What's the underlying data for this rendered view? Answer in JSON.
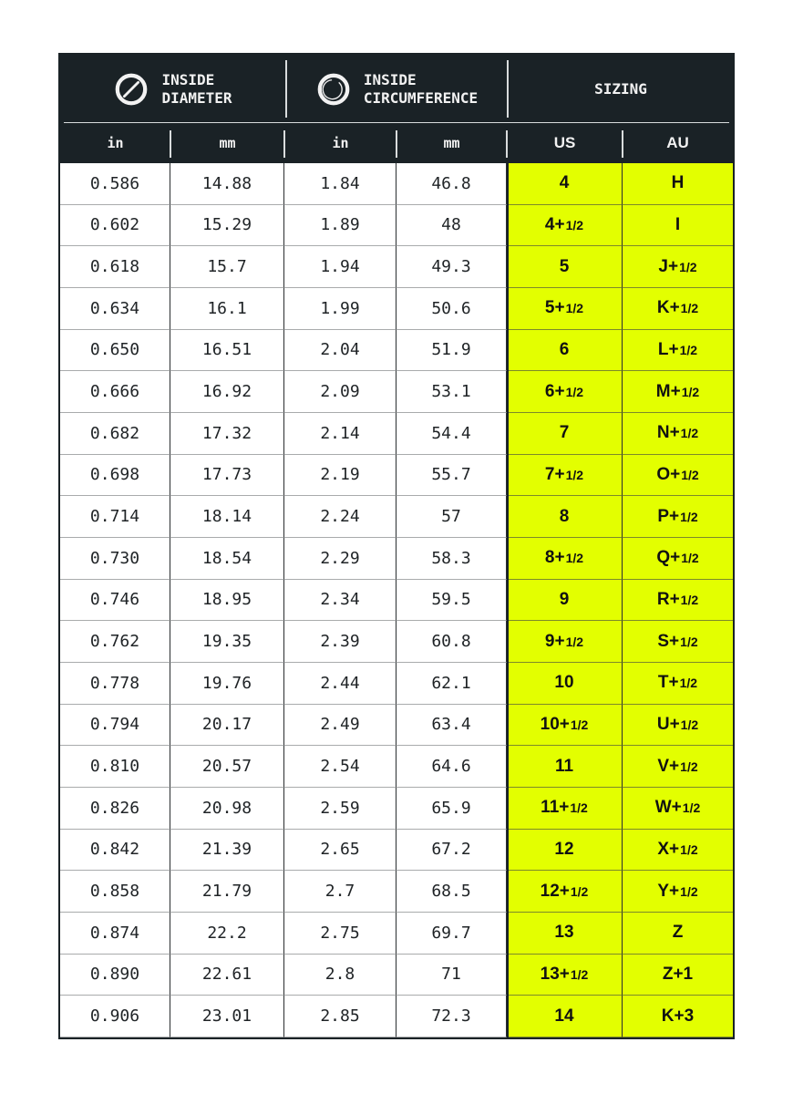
{
  "header": {
    "groups": [
      {
        "line1": "INSIDE",
        "line2": "DIAMETER",
        "icon": "diameter-icon"
      },
      {
        "line1": "INSIDE",
        "line2": "CIRCUMFERENCE",
        "icon": "circumference-icon"
      },
      {
        "line1": "SIZING"
      }
    ],
    "columns": [
      "in",
      "mm",
      "in",
      "mm",
      "US",
      "AU"
    ]
  },
  "colors": {
    "header_bg": "#1a2226",
    "sizing_bg": "#e3ff00"
  },
  "rows": [
    {
      "d_in": "0.586",
      "d_mm": "14.88",
      "c_in": "1.84",
      "c_mm": "46.8",
      "us": "4",
      "us_frac": "",
      "au": "H",
      "au_frac": ""
    },
    {
      "d_in": "0.602",
      "d_mm": "15.29",
      "c_in": "1.89",
      "c_mm": "48",
      "us": "4+",
      "us_frac": "1/2",
      "au": "I",
      "au_frac": ""
    },
    {
      "d_in": "0.618",
      "d_mm": "15.7",
      "c_in": "1.94",
      "c_mm": "49.3",
      "us": "5",
      "us_frac": "",
      "au": "J+",
      "au_frac": "1/2"
    },
    {
      "d_in": "0.634",
      "d_mm": "16.1",
      "c_in": "1.99",
      "c_mm": "50.6",
      "us": "5+",
      "us_frac": "1/2",
      "au": "K+",
      "au_frac": "1/2"
    },
    {
      "d_in": "0.650",
      "d_mm": "16.51",
      "c_in": "2.04",
      "c_mm": "51.9",
      "us": "6",
      "us_frac": "",
      "au": "L+",
      "au_frac": "1/2"
    },
    {
      "d_in": "0.666",
      "d_mm": "16.92",
      "c_in": "2.09",
      "c_mm": "53.1",
      "us": "6+",
      "us_frac": "1/2",
      "au": "M+",
      "au_frac": "1/2"
    },
    {
      "d_in": "0.682",
      "d_mm": "17.32",
      "c_in": "2.14",
      "c_mm": "54.4",
      "us": "7",
      "us_frac": "",
      "au": "N+",
      "au_frac": "1/2"
    },
    {
      "d_in": "0.698",
      "d_mm": "17.73",
      "c_in": "2.19",
      "c_mm": "55.7",
      "us": "7+",
      "us_frac": "1/2",
      "au": "O+",
      "au_frac": "1/2"
    },
    {
      "d_in": "0.714",
      "d_mm": "18.14",
      "c_in": "2.24",
      "c_mm": "57",
      "us": "8",
      "us_frac": "",
      "au": "P+",
      "au_frac": "1/2"
    },
    {
      "d_in": "0.730",
      "d_mm": "18.54",
      "c_in": "2.29",
      "c_mm": "58.3",
      "us": "8+",
      "us_frac": "1/2",
      "au": "Q+",
      "au_frac": "1/2"
    },
    {
      "d_in": "0.746",
      "d_mm": "18.95",
      "c_in": "2.34",
      "c_mm": "59.5",
      "us": "9",
      "us_frac": "",
      "au": "R+",
      "au_frac": "1/2"
    },
    {
      "d_in": "0.762",
      "d_mm": "19.35",
      "c_in": "2.39",
      "c_mm": "60.8",
      "us": "9+",
      "us_frac": "1/2",
      "au": "S+",
      "au_frac": "1/2"
    },
    {
      "d_in": "0.778",
      "d_mm": "19.76",
      "c_in": "2.44",
      "c_mm": "62.1",
      "us": "10",
      "us_frac": "",
      "au": "T+",
      "au_frac": "1/2"
    },
    {
      "d_in": "0.794",
      "d_mm": "20.17",
      "c_in": "2.49",
      "c_mm": "63.4",
      "us": "10+",
      "us_frac": "1/2",
      "au": "U+",
      "au_frac": "1/2"
    },
    {
      "d_in": "0.810",
      "d_mm": "20.57",
      "c_in": "2.54",
      "c_mm": "64.6",
      "us": "11",
      "us_frac": "",
      "au": "V+",
      "au_frac": "1/2"
    },
    {
      "d_in": "0.826",
      "d_mm": "20.98",
      "c_in": "2.59",
      "c_mm": "65.9",
      "us": "11+",
      "us_frac": "1/2",
      "au": "W+",
      "au_frac": "1/2"
    },
    {
      "d_in": "0.842",
      "d_mm": "21.39",
      "c_in": "2.65",
      "c_mm": "67.2",
      "us": "12",
      "us_frac": "",
      "au": "X+",
      "au_frac": "1/2"
    },
    {
      "d_in": "0.858",
      "d_mm": "21.79",
      "c_in": "2.7",
      "c_mm": "68.5",
      "us": "12+",
      "us_frac": "1/2",
      "au": "Y+",
      "au_frac": "1/2"
    },
    {
      "d_in": "0.874",
      "d_mm": "22.2",
      "c_in": "2.75",
      "c_mm": "69.7",
      "us": "13",
      "us_frac": "",
      "au": "Z",
      "au_frac": ""
    },
    {
      "d_in": "0.890",
      "d_mm": "22.61",
      "c_in": "2.8",
      "c_mm": "71",
      "us": "13+",
      "us_frac": "1/2",
      "au": "Z+1",
      "au_frac": ""
    },
    {
      "d_in": "0.906",
      "d_mm": "23.01",
      "c_in": "2.85",
      "c_mm": "72.3",
      "us": "14",
      "us_frac": "",
      "au": "K+3",
      "au_frac": ""
    }
  ]
}
